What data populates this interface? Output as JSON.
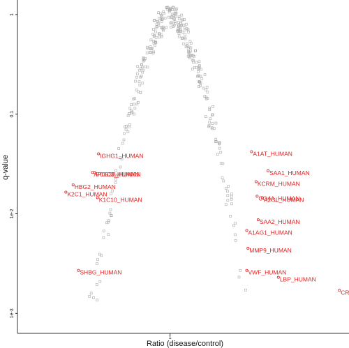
{
  "chart_data": {
    "type": "scatter",
    "title": "",
    "xlabel": "Ratio (disease/control)",
    "ylabel": "q-value",
    "x_scale": "log",
    "y_scale": "log",
    "xlim": [
      0.12,
      12
    ],
    "ylim": [
      0.00063,
      1.4
    ],
    "x_ticks": [
      {
        "value": 1,
        "label": "1"
      }
    ],
    "y_ticks": [
      {
        "value": 1,
        "label": "1"
      },
      {
        "value": 0.1,
        "label": "0.1"
      },
      {
        "value": 0.01,
        "label": "1e-2"
      },
      {
        "value": 0.001,
        "label": "1e-3"
      }
    ],
    "grid": false,
    "colors": {
      "background_points": "#aaaaaa",
      "highlight": "#dd2222",
      "axis": "#333333"
    },
    "background_points": {
      "seed": 4242,
      "count": 330,
      "note_on_shape": "volcano"
    },
    "highlighted": [
      {
        "label": "IGHG1_HUMAN",
        "x": 0.37,
        "y": 0.04
      },
      {
        "label": "A1AT_HUMAN",
        "x": 3.1,
        "y": 0.042
      },
      {
        "label": "APOC3_HUMAN",
        "x": 0.34,
        "y": 0.026
      },
      {
        "label": "FCG3B_HUMAN",
        "x": 0.35,
        "y": 0.026
      },
      {
        "label": "SAA1_HUMAN",
        "x": 3.9,
        "y": 0.027
      },
      {
        "label": "HBG2_HUMAN",
        "x": 0.26,
        "y": 0.0195
      },
      {
        "label": "KCRM_HUMAN",
        "x": 3.3,
        "y": 0.021
      },
      {
        "label": "K2C1_HUMAN",
        "x": 0.235,
        "y": 0.0165
      },
      {
        "label": "K1C10_HUMAN",
        "x": 0.365,
        "y": 0.0145
      },
      {
        "label": "CO4A_HUMAN",
        "x": 3.35,
        "y": 0.015
      },
      {
        "label": "A2GL_HUMAN",
        "x": 3.6,
        "y": 0.0145
      },
      {
        "label": "SAA2_HUMAN",
        "x": 3.4,
        "y": 0.0087
      },
      {
        "label": "A1AG1_HUMAN",
        "x": 2.9,
        "y": 0.0068
      },
      {
        "label": "MMP9_HUMAN",
        "x": 2.95,
        "y": 0.0045
      },
      {
        "label": "SHBG_HUMAN",
        "x": 0.28,
        "y": 0.0027
      },
      {
        "label": "VWF_HUMAN",
        "x": 2.9,
        "y": 0.0027
      },
      {
        "label": "LBP_HUMAN",
        "x": 4.5,
        "y": 0.0023
      },
      {
        "label": "CRP",
        "x": 10.5,
        "y": 0.0017
      }
    ]
  }
}
